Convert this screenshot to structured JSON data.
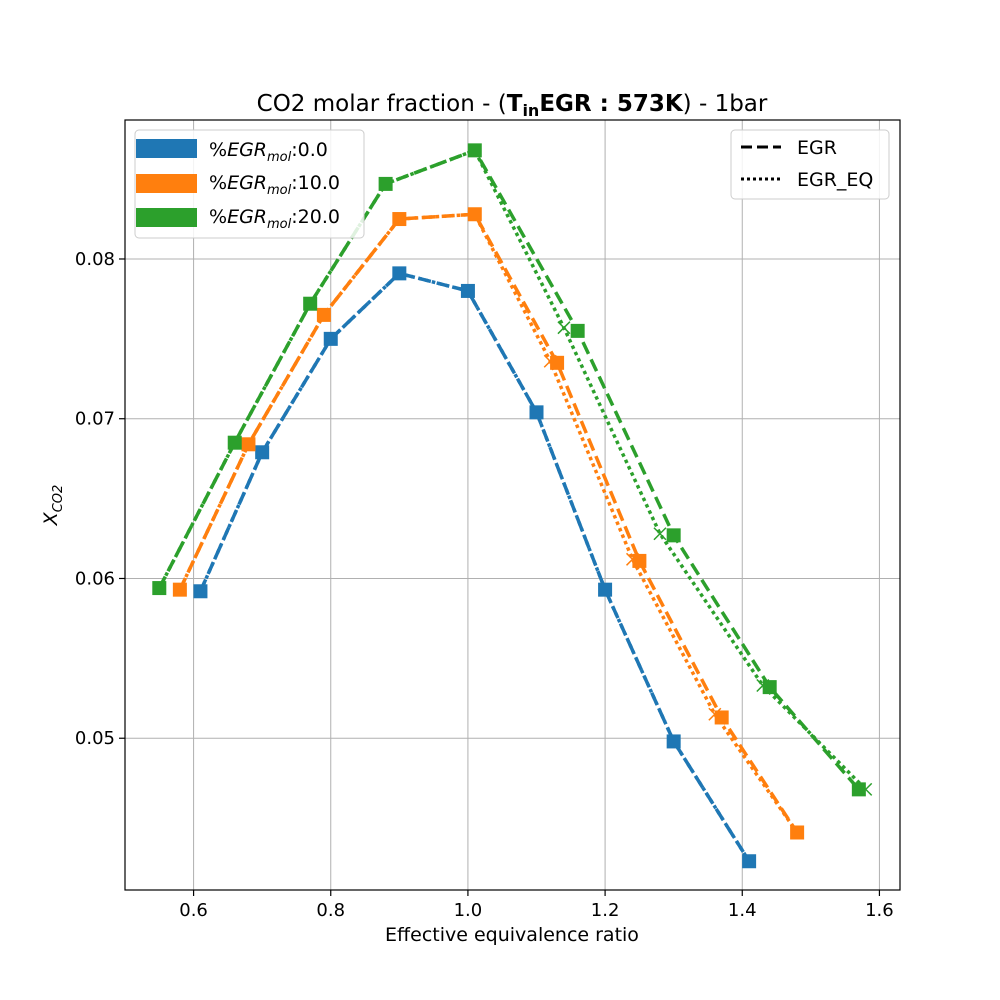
{
  "chart_data": {
    "type": "line",
    "title": {
      "prefix": "CO2 molar fraction - (",
      "bold_main": "T",
      "bold_sub": "in",
      "bold_rest": "EGR : 573K",
      "suffix": ") - 1bar"
    },
    "xlabel": "Effective equivalence ratio",
    "ylabel": {
      "main": "X",
      "sub": "CO2"
    },
    "xlim": [
      0.5,
      1.63
    ],
    "ylim": [
      0.0405,
      0.0887
    ],
    "xticks": [
      0.6,
      0.8,
      1.0,
      1.2,
      1.4,
      1.6
    ],
    "xtick_labels": [
      "0.6",
      "0.8",
      "1.0",
      "1.2",
      "1.4",
      "1.6"
    ],
    "yticks": [
      0.05,
      0.06,
      0.07,
      0.08
    ],
    "ytick_labels": [
      "0.05",
      "0.06",
      "0.07",
      "0.08"
    ],
    "grid": true,
    "legend_series": {
      "placement": "top-left",
      "entries": [
        {
          "prefix": "%",
          "main": "EGR",
          "sub": "mol",
          "value": ":0.0",
          "color": "#1f77b4"
        },
        {
          "prefix": "%",
          "main": "EGR",
          "sub": "mol",
          "value": ":10.0",
          "color": "#ff7f0e"
        },
        {
          "prefix": "%",
          "main": "EGR",
          "sub": "mol",
          "value": ":20.0",
          "color": "#2ca02c"
        }
      ]
    },
    "legend_style": {
      "placement": "top-right",
      "entries": [
        {
          "label": "EGR",
          "dash": "dashed"
        },
        {
          "label": "EGR_EQ",
          "dash": "dotted"
        }
      ]
    },
    "series": [
      {
        "egr": 0.0,
        "color": "#1f77b4",
        "egr_x": [
          0.61,
          0.7,
          0.8,
          0.9,
          1.0,
          1.1,
          1.2,
          1.3,
          1.41
        ],
        "egr_y": [
          0.0592,
          0.0679,
          0.075,
          0.0791,
          0.078,
          0.0704,
          0.0593,
          0.0498,
          0.0423
        ],
        "eq_x": [
          0.61,
          0.7,
          0.8,
          0.9,
          1.0,
          1.1,
          1.2,
          1.3,
          1.41
        ],
        "eq_y": [
          0.0592,
          0.0679,
          0.075,
          0.0791,
          0.078,
          0.0704,
          0.0593,
          0.0498,
          0.0423
        ]
      },
      {
        "egr": 10.0,
        "color": "#ff7f0e",
        "egr_x": [
          0.58,
          0.68,
          0.79,
          0.9,
          1.01,
          1.13,
          1.25,
          1.37,
          1.48
        ],
        "egr_y": [
          0.0593,
          0.0684,
          0.0765,
          0.0825,
          0.0828,
          0.0735,
          0.0611,
          0.0513,
          0.0441
        ],
        "eq_x": [
          0.58,
          0.68,
          0.79,
          0.9,
          1.01,
          1.12,
          1.24,
          1.36,
          1.48
        ],
        "eq_y": [
          0.0593,
          0.0684,
          0.0765,
          0.0825,
          0.0828,
          0.0736,
          0.0612,
          0.0515,
          0.0441
        ]
      },
      {
        "egr": 20.0,
        "color": "#2ca02c",
        "egr_x": [
          0.55,
          0.66,
          0.77,
          0.88,
          1.01,
          1.16,
          1.3,
          1.44,
          1.57
        ],
        "egr_y": [
          0.0594,
          0.0685,
          0.0772,
          0.0847,
          0.0868,
          0.0755,
          0.0627,
          0.0532,
          0.0468
        ],
        "eq_x": [
          0.55,
          0.66,
          0.77,
          0.88,
          1.01,
          1.14,
          1.28,
          1.43,
          1.58
        ],
        "eq_y": [
          0.0594,
          0.0685,
          0.0772,
          0.0847,
          0.0868,
          0.0757,
          0.0628,
          0.0533,
          0.0468
        ]
      }
    ]
  }
}
